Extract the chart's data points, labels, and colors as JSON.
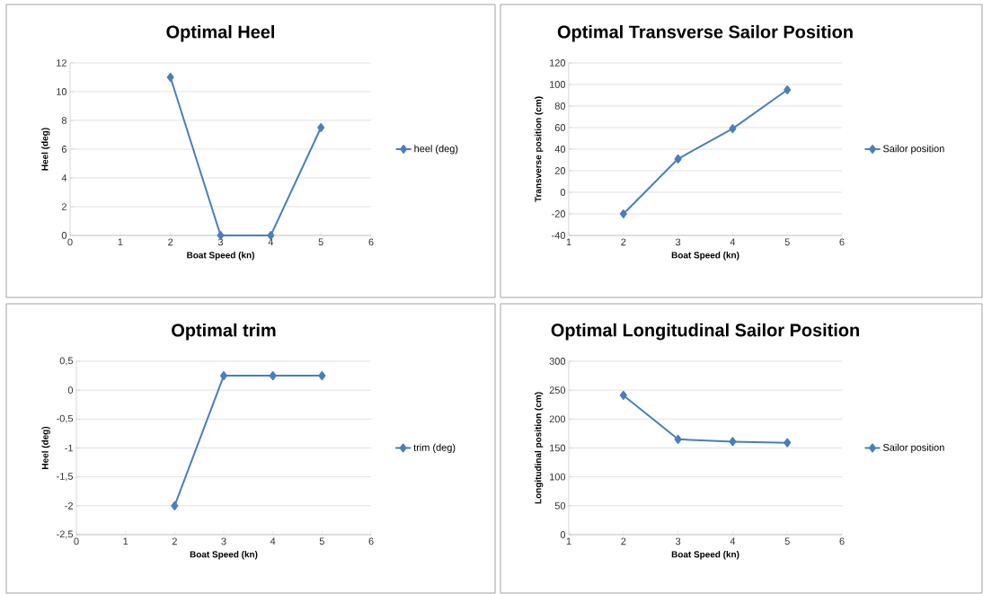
{
  "chart_data": [
    {
      "type": "line",
      "title": "Optimal Heel",
      "xlabel": "Boat Speed (kn)",
      "ylabel": "Heel (deg)",
      "x": [
        2,
        3,
        4,
        5
      ],
      "series": [
        {
          "name": "heel (deg)",
          "color": "#4a7ebb",
          "values": [
            11,
            0,
            0,
            7.5
          ]
        }
      ],
      "xlim": [
        0,
        6
      ],
      "xticks": [
        0,
        1,
        2,
        3,
        4,
        5,
        6
      ],
      "ylim": [
        0,
        12
      ],
      "yticks": [
        0,
        2,
        4,
        6,
        8,
        10,
        12
      ],
      "grid": "y",
      "legend": "right",
      "marker": "diamond",
      "line_style": "solid"
    },
    {
      "type": "line",
      "title": "Optimal Transverse Sailor Position",
      "xlabel": "Boat Speed (kn)",
      "ylabel": "Transverse position (cm)",
      "x": [
        2,
        3,
        4,
        5
      ],
      "series": [
        {
          "name": "Sailor position",
          "color": "#4a7ebb",
          "values": [
            -20,
            31,
            59,
            95
          ]
        }
      ],
      "xlim": [
        1,
        6
      ],
      "xticks": [
        1,
        2,
        3,
        4,
        5,
        6
      ],
      "ylim": [
        -40,
        120
      ],
      "yticks": [
        -40,
        -20,
        0,
        20,
        40,
        60,
        80,
        100,
        120
      ],
      "grid": "y",
      "legend": "right",
      "marker": "diamond",
      "line_style": "solid"
    },
    {
      "type": "line",
      "title": "Optimal trim",
      "xlabel": "Boat Speed (kn)",
      "ylabel": "Heel (deg)",
      "x": [
        2,
        3,
        4,
        5
      ],
      "series": [
        {
          "name": "trim (deg)",
          "color": "#4a7ebb",
          "values": [
            -2,
            0.25,
            0.25,
            0.25
          ]
        }
      ],
      "xlim": [
        0,
        6
      ],
      "xticks": [
        0,
        1,
        2,
        3,
        4,
        5,
        6
      ],
      "ylim": [
        -2.5,
        0.5
      ],
      "yticks": [
        {
          "value": -2.5,
          "label": "-2,5"
        },
        -2,
        {
          "value": -1.5,
          "label": "-1,5"
        },
        -1,
        {
          "value": -0.5,
          "label": "-0,5"
        },
        0,
        {
          "value": 0.5,
          "label": "0,5"
        }
      ],
      "grid": "y",
      "legend": "right",
      "marker": "diamond",
      "line_style": "solid"
    },
    {
      "type": "line",
      "title": "Optimal Longitudinal Sailor Position",
      "xlabel": "Boat Speed (kn)",
      "ylabel": "Longitudinal position (cm)",
      "x": [
        2,
        3,
        4,
        5
      ],
      "series": [
        {
          "name": "Sailor position",
          "color": "#4a7ebb",
          "values": [
            241,
            165,
            161,
            159
          ]
        }
      ],
      "xlim": [
        1,
        6
      ],
      "xticks": [
        1,
        2,
        3,
        4,
        5,
        6
      ],
      "ylim": [
        0,
        300
      ],
      "yticks": [
        0,
        50,
        100,
        150,
        200,
        250,
        300
      ],
      "grid": "y",
      "legend": "right",
      "marker": "diamond",
      "line_style": "solid"
    }
  ]
}
